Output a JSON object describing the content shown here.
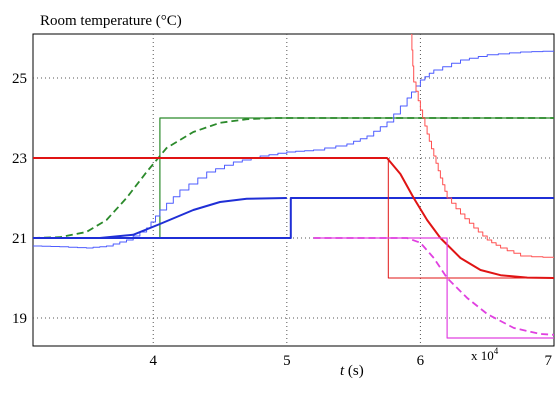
{
  "chart_data": {
    "type": "line",
    "title": "Room temperature (°C)",
    "xlabel_italic": "t",
    "xlabel_rest": " (s)",
    "x_multiplier_base": "x 10",
    "x_multiplier_exp": "4",
    "xlim": [
      3.1,
      7.0
    ],
    "ylim": [
      18.3,
      26.1
    ],
    "x_ticks": [
      {
        "value": 4,
        "label": "4"
      },
      {
        "value": 5,
        "label": "5"
      },
      {
        "value": 6,
        "label": "6"
      },
      {
        "value": 7,
        "label": "7"
      }
    ],
    "y_ticks": [
      {
        "value": 19,
        "label": "19"
      },
      {
        "value": 21,
        "label": "21"
      },
      {
        "value": 23,
        "label": "23"
      },
      {
        "value": 25,
        "label": "25"
      }
    ],
    "grid": true,
    "series": [
      {
        "color": "#2b8a2b",
        "style": "step",
        "width": 1.2,
        "points": [
          [
            3.1,
            21.0
          ],
          [
            4.05,
            21.0
          ],
          [
            4.05,
            24.0
          ],
          [
            7.0,
            24.0
          ]
        ]
      },
      {
        "color": "#2b8a2b",
        "style": "dashed",
        "width": 1.8,
        "points": [
          [
            3.1,
            21.0
          ],
          [
            3.3,
            21.02
          ],
          [
            3.5,
            21.15
          ],
          [
            3.65,
            21.45
          ],
          [
            3.8,
            22.0
          ],
          [
            3.95,
            22.65
          ],
          [
            4.1,
            23.25
          ],
          [
            4.3,
            23.65
          ],
          [
            4.5,
            23.88
          ],
          [
            4.7,
            23.97
          ],
          [
            4.9,
            24.0
          ],
          [
            7.0,
            24.0
          ]
        ]
      },
      {
        "color": "#4d5cff",
        "style": "staircase",
        "width": 1.0,
        "points": [
          [
            3.1,
            20.8
          ],
          [
            3.3,
            20.78
          ],
          [
            3.5,
            20.75
          ],
          [
            3.65,
            20.8
          ],
          [
            3.8,
            20.95
          ],
          [
            3.95,
            21.25
          ],
          [
            4.05,
            21.7
          ],
          [
            4.2,
            22.2
          ],
          [
            4.4,
            22.65
          ],
          [
            4.6,
            22.9
          ],
          [
            4.8,
            23.05
          ],
          [
            5.0,
            23.15
          ],
          [
            5.2,
            23.2
          ],
          [
            5.45,
            23.35
          ],
          [
            5.6,
            23.55
          ],
          [
            5.75,
            23.9
          ],
          [
            5.9,
            24.5
          ],
          [
            6.0,
            24.95
          ],
          [
            6.1,
            25.2
          ],
          [
            6.3,
            25.45
          ],
          [
            6.5,
            25.58
          ],
          [
            6.75,
            25.65
          ],
          [
            7.0,
            25.68
          ]
        ]
      },
      {
        "color": "#1f2fd6",
        "style": "solid",
        "width": 2.0,
        "points": [
          [
            3.1,
            21.0
          ],
          [
            3.6,
            21.0
          ],
          [
            3.85,
            21.08
          ],
          [
            4.05,
            21.35
          ],
          [
            4.3,
            21.7
          ],
          [
            4.5,
            21.9
          ],
          [
            4.7,
            21.98
          ],
          [
            5.0,
            22.0
          ]
        ]
      },
      {
        "color": "#1f2fd6",
        "style": "step",
        "width": 2.0,
        "points": [
          [
            3.1,
            21.0
          ],
          [
            5.03,
            21.0
          ],
          [
            5.03,
            22.0
          ],
          [
            7.0,
            22.0
          ]
        ]
      },
      {
        "color": "#e01414",
        "style": "solid",
        "width": 2.0,
        "points": [
          [
            3.1,
            23.0
          ],
          [
            5.75,
            23.0
          ],
          [
            5.85,
            22.6
          ],
          [
            5.95,
            22.0
          ],
          [
            6.05,
            21.45
          ],
          [
            6.15,
            21.0
          ],
          [
            6.3,
            20.5
          ],
          [
            6.45,
            20.2
          ],
          [
            6.6,
            20.07
          ],
          [
            6.8,
            20.01
          ],
          [
            7.0,
            20.0
          ]
        ]
      },
      {
        "color": "#e01414",
        "style": "step",
        "width": 1.0,
        "points": [
          [
            5.76,
            23.0
          ],
          [
            5.76,
            20.0
          ],
          [
            7.0,
            20.0
          ]
        ]
      },
      {
        "color": "#ff5050",
        "style": "staircase",
        "width": 1.0,
        "points": [
          [
            5.93,
            26.1
          ],
          [
            5.95,
            24.9
          ],
          [
            6.0,
            24.2
          ],
          [
            6.05,
            23.6
          ],
          [
            6.1,
            23.05
          ],
          [
            6.15,
            22.5
          ],
          [
            6.2,
            22.0
          ],
          [
            6.3,
            21.6
          ],
          [
            6.4,
            21.25
          ],
          [
            6.5,
            20.95
          ],
          [
            6.6,
            20.75
          ],
          [
            6.75,
            20.55
          ],
          [
            7.0,
            20.5
          ]
        ]
      },
      {
        "color": "#e040e0",
        "style": "dashed",
        "width": 1.8,
        "points": [
          [
            5.2,
            21.0
          ],
          [
            5.9,
            21.0
          ],
          [
            6.0,
            20.88
          ],
          [
            6.1,
            20.5
          ],
          [
            6.2,
            20.0
          ],
          [
            6.35,
            19.5
          ],
          [
            6.5,
            19.1
          ],
          [
            6.7,
            18.75
          ],
          [
            6.9,
            18.6
          ],
          [
            7.0,
            18.58
          ]
        ]
      },
      {
        "color": "#e040e0",
        "style": "step",
        "width": 1.2,
        "points": [
          [
            5.2,
            21.0
          ],
          [
            6.2,
            21.0
          ],
          [
            6.2,
            18.5
          ],
          [
            7.0,
            18.5
          ]
        ]
      }
    ]
  }
}
